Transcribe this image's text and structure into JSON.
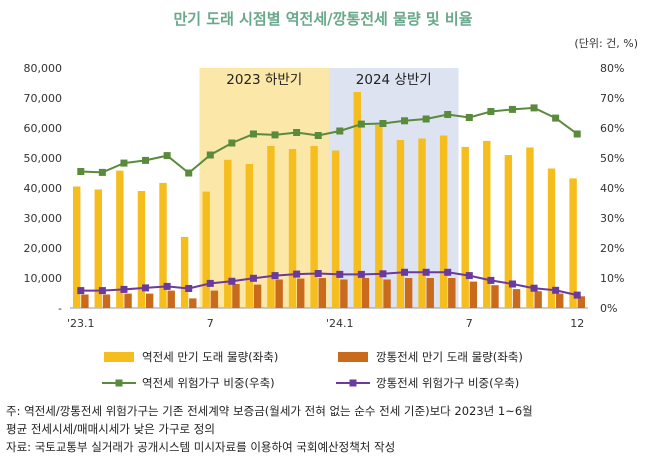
{
  "chart_data": {
    "type": "bar",
    "title": "만기 도래 시점별 역전세/깡통전세 물량 및 비율",
    "unit_note": "(단위: 건, %)",
    "categories": [
      "'23.1",
      "2",
      "3",
      "4",
      "5",
      "6",
      "7",
      "8",
      "9",
      "10",
      "11",
      "12",
      "'24.1",
      "2",
      "3",
      "4",
      "5",
      "6",
      "7",
      "8",
      "9",
      "10",
      "11",
      "12"
    ],
    "x_tick_labels": [
      "'23.1",
      "",
      "",
      "",
      "",
      "",
      "7",
      "",
      "",
      "",
      "",
      "",
      "'24.1",
      "",
      "",
      "",
      "",
      "",
      "7",
      "",
      "",
      "",
      "",
      "12"
    ],
    "y_left": {
      "min": 0,
      "max": 80000,
      "ticks": [
        "-",
        "10,000",
        "20,000",
        "30,000",
        "40,000",
        "50,000",
        "60,000",
        "70,000",
        "80,000"
      ]
    },
    "y_right": {
      "min": 0,
      "max": 80,
      "ticks": [
        "0%",
        "10%",
        "20%",
        "30%",
        "40%",
        "50%",
        "60%",
        "70%",
        "80%"
      ]
    },
    "periods": [
      {
        "label": "2023 하반기",
        "start": 6,
        "end": 11,
        "color": "#fbe7a8"
      },
      {
        "label": "2024 상반기",
        "start": 12,
        "end": 17,
        "color": "#dde3f1"
      }
    ],
    "series": [
      {
        "name": "역전세 만기 도래 물량(좌축)",
        "kind": "bar",
        "axis": "left",
        "color": "#f5bd1e",
        "values": [
          40500,
          39500,
          45800,
          39000,
          41700,
          23700,
          38800,
          49400,
          48000,
          54000,
          53000,
          54000,
          52500,
          72000,
          61000,
          56000,
          56500,
          57500,
          53700,
          55700,
          51000,
          53500,
          46500,
          43200
        ]
      },
      {
        "name": "깡통전세 만기 도래 물량(좌축)",
        "kind": "bar",
        "axis": "left",
        "color": "#c96a1c",
        "values": [
          4500,
          4500,
          4800,
          4800,
          5800,
          3200,
          5800,
          8000,
          7800,
          9500,
          9800,
          10000,
          9500,
          10000,
          9500,
          10000,
          10000,
          10000,
          8800,
          7600,
          6300,
          5600,
          4800,
          3900
        ]
      },
      {
        "name": "역전세 위험가구 비중(우축)",
        "kind": "line",
        "axis": "right",
        "color": "#5a8a3c",
        "values": [
          45.5,
          45.2,
          48.3,
          49.2,
          50.8,
          45.0,
          51.0,
          55.0,
          58.0,
          57.7,
          58.5,
          57.5,
          59.0,
          61.3,
          61.5,
          62.4,
          63.0,
          64.5,
          63.5,
          65.5,
          66.2,
          66.7,
          63.3,
          58.0
        ]
      },
      {
        "name": "깡통전세 위험가구 비중(우축)",
        "kind": "line",
        "axis": "right",
        "color": "#6a3a9e",
        "values": [
          5.8,
          5.8,
          6.2,
          6.7,
          7.2,
          6.5,
          8.2,
          8.9,
          9.9,
          10.8,
          11.3,
          11.5,
          11.2,
          11.2,
          11.4,
          11.9,
          11.9,
          11.9,
          10.8,
          9.2,
          8.0,
          6.6,
          5.9,
          4.3
        ]
      }
    ]
  },
  "notes": [
    "주: 역전세/깡통전세 위험가구는 기존 전세계약 보증금(월세가 전혀 없는 순수 전세 기준)보다 2023년 1~6월",
    "    평균 전세시세/매매시세가 낮은 가구로 정의",
    "자료: 국토교통부 실거래가 공개시스템 미시자료를 이용하여 국회예산정책처 작성"
  ]
}
